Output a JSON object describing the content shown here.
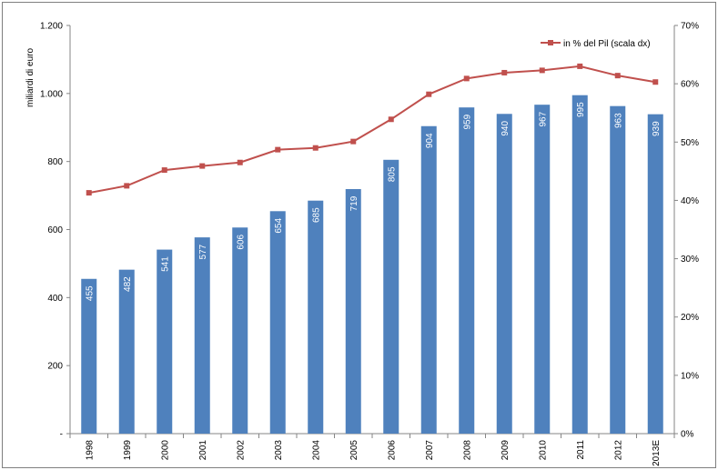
{
  "chart_data": {
    "type": "bar",
    "title": "",
    "ylabel": "miliardi di euro",
    "categories": [
      "1998",
      "1999",
      "2000",
      "2001",
      "2002",
      "2003",
      "2004",
      "2005",
      "2006",
      "2007",
      "2008",
      "2009",
      "2010",
      "2011",
      "2012",
      "2013E"
    ],
    "series": [
      {
        "type": "bar",
        "values": [
          455,
          482,
          541,
          577,
          606,
          654,
          685,
          719,
          805,
          904,
          959,
          940,
          967,
          995,
          963,
          939
        ],
        "color": "#4f81bd",
        "axis": "left"
      },
      {
        "name": "in % del Pil (scala dx)",
        "type": "line",
        "values": [
          41.3,
          42.5,
          45.2,
          45.9,
          46.5,
          48.7,
          49.0,
          50.1,
          53.9,
          58.2,
          60.9,
          61.9,
          62.3,
          63.0,
          61.4,
          60.3
        ],
        "color": "#c0504d",
        "axis": "right"
      }
    ],
    "ylim": [
      0,
      1200
    ],
    "y_ticks": [
      "-",
      "200",
      "400",
      "600",
      "800",
      "1.000",
      "1.200"
    ],
    "y2lim": [
      0,
      70
    ],
    "y2_ticks": [
      "0%",
      "10%",
      "20%",
      "30%",
      "40%",
      "50%",
      "60%",
      "70%"
    ],
    "legend": {
      "position": "top-right",
      "label": "in % del Pil (scala dx)"
    },
    "grid": false
  }
}
